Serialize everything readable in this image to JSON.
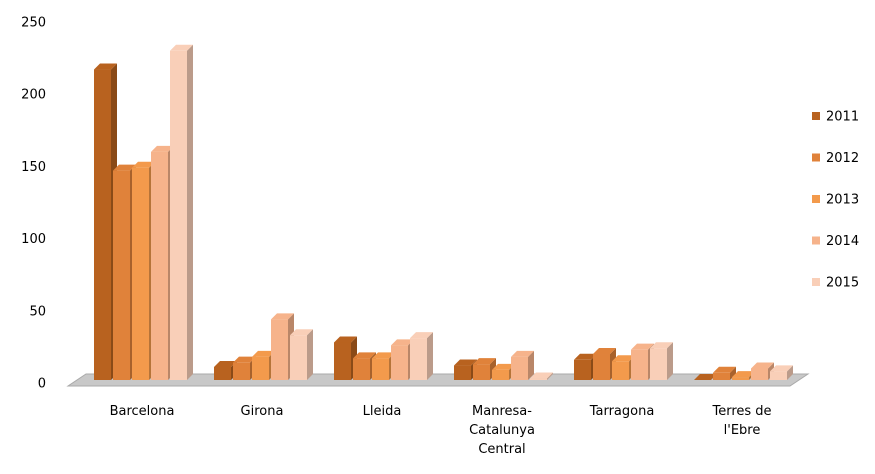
{
  "chart_data": {
    "type": "bar",
    "categories": [
      "Barcelona",
      "Girona",
      "Lleida",
      "Manresa-Catalunya Central",
      "Tarragona",
      "Terres de l'Ebre"
    ],
    "series": [
      {
        "name": "2011",
        "color": "#b8621f",
        "values": [
          215,
          9,
          26,
          10,
          14,
          0
        ]
      },
      {
        "name": "2012",
        "color": "#e0823a",
        "values": [
          145,
          12,
          15,
          11,
          18,
          5
        ]
      },
      {
        "name": "2013",
        "color": "#f39a4c",
        "values": [
          147,
          16,
          15,
          7,
          13,
          2
        ]
      },
      {
        "name": "2014",
        "color": "#f6b38b",
        "values": [
          158,
          42,
          24,
          16,
          21,
          8
        ]
      },
      {
        "name": "2015",
        "color": "#f9cfb8",
        "values": [
          228,
          31,
          29,
          1,
          22,
          6
        ]
      }
    ],
    "ylim": [
      0,
      250
    ],
    "yticks": [
      0,
      50,
      100,
      150,
      200,
      250
    ],
    "grid": false,
    "legend": "right"
  }
}
